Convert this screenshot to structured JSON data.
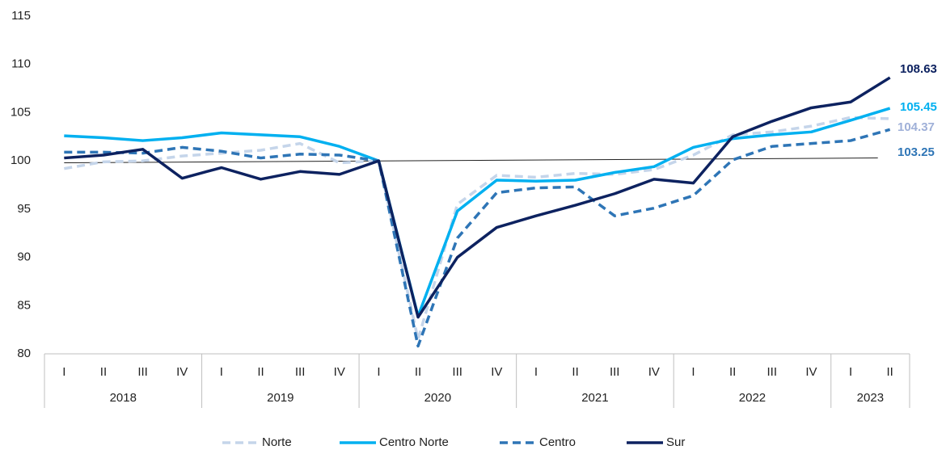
{
  "chart_data": {
    "type": "line",
    "categories": [
      "I",
      "II",
      "III",
      "IV",
      "I",
      "II",
      "III",
      "IV",
      "I",
      "II",
      "III",
      "IV",
      "I",
      "II",
      "III",
      "IV",
      "I",
      "II",
      "III",
      "IV",
      "I",
      "II"
    ],
    "groups": [
      {
        "label": "2018",
        "span": 4
      },
      {
        "label": "2019",
        "span": 4
      },
      {
        "label": "2020",
        "span": 4
      },
      {
        "label": "2021",
        "span": 4
      },
      {
        "label": "2022",
        "span": 4
      },
      {
        "label": "2023",
        "span": 2
      }
    ],
    "series": [
      {
        "name": "Norte",
        "color": "#c5d5ea",
        "dashed": true,
        "values": [
          99.2,
          99.9,
          100,
          100.5,
          100.8,
          101.1,
          101.8,
          99.8,
          100,
          81.5,
          95.5,
          98.5,
          98.3,
          98.7,
          98.6,
          99.1,
          100.6,
          102.7,
          103,
          103.6,
          104.5,
          104.37
        ]
      },
      {
        "name": "Centro Norte",
        "color": "#00b0f0",
        "dashed": false,
        "values": [
          102.6,
          102.4,
          102.1,
          102.4,
          102.9,
          102.7,
          102.5,
          101.5,
          100,
          83.9,
          94.8,
          98,
          97.9,
          98,
          98.8,
          99.4,
          101.4,
          102.3,
          102.7,
          103,
          104.2,
          105.45
        ]
      },
      {
        "name": "Centro",
        "color": "#2e75b6",
        "dashed": true,
        "values": [
          100.9,
          100.9,
          100.8,
          101.4,
          101,
          100.3,
          100.7,
          100.6,
          100,
          80.8,
          92,
          96.7,
          97.2,
          97.3,
          94.3,
          95.1,
          96.4,
          100.1,
          101.5,
          101.8,
          102.1,
          103.25
        ]
      },
      {
        "name": "Sur",
        "color": "#0d2260",
        "dashed": false,
        "values": [
          100.3,
          100.6,
          101.2,
          98.2,
          99.3,
          98.1,
          98.9,
          98.6,
          100,
          83.8,
          90,
          93.1,
          94.3,
          95.4,
          96.6,
          98.1,
          97.7,
          102.5,
          104.1,
          105.5,
          106.1,
          108.63
        ]
      }
    ],
    "reference_line": [
      99.8,
      100.3
    ],
    "ylim": [
      80,
      115
    ],
    "yticks": [
      80,
      85,
      90,
      95,
      100,
      105,
      110,
      115
    ],
    "legend": "bottom"
  }
}
